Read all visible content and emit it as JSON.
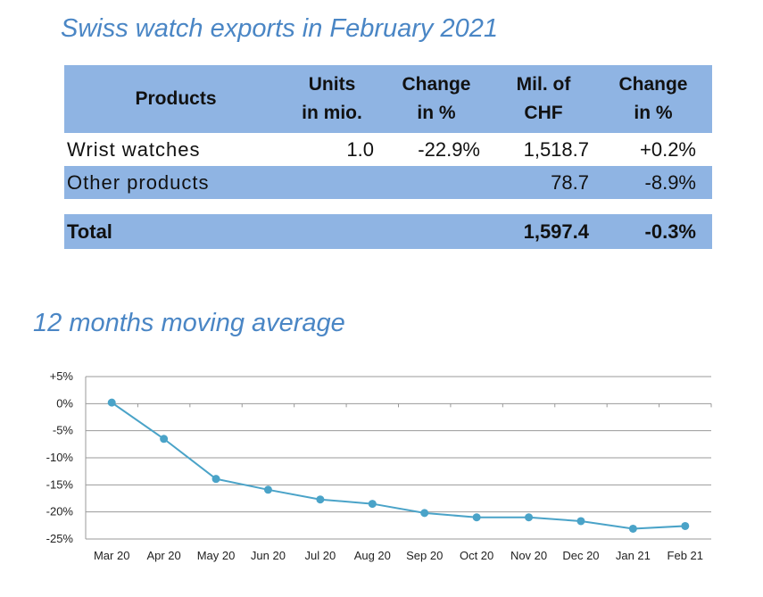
{
  "page": {
    "title": "Swiss watch exports in February 2021",
    "chart_title": "12 months moving average"
  },
  "table": {
    "headers": {
      "products": "Products",
      "units": "Units\nin mio.",
      "change_units": "Change\nin %",
      "mil_chf": "Mil. of\nCHF",
      "change_chf": "Change\nin %"
    },
    "rows": [
      {
        "product": "Wrist watches",
        "units": "1.0",
        "change_units": "-22.9%",
        "mil_chf": "1,518.7",
        "change_chf": "+0.2%"
      },
      {
        "product": "Other products",
        "units": "",
        "change_units": "",
        "mil_chf": "78.7",
        "change_chf": "-8.9%"
      }
    ],
    "total": {
      "label": "Total",
      "mil_chf": "1,597.4",
      "change_chf": "-0.3%"
    }
  },
  "chart_data": {
    "type": "line",
    "title": "12 months moving average",
    "xlabel": "",
    "ylabel": "",
    "categories": [
      "Mar 20",
      "Apr 20",
      "May 20",
      "Jun 20",
      "Jul 20",
      "Aug 20",
      "Sep 20",
      "Oct 20",
      "Nov 20",
      "Dec 20",
      "Jan 21",
      "Feb 21"
    ],
    "series": [
      {
        "values": [
          0.2,
          -6.5,
          -13.9,
          -15.9,
          -17.7,
          -18.5,
          -20.2,
          -21.0,
          -21.0,
          -21.7,
          -23.1,
          -22.6
        ]
      }
    ],
    "ylim": [
      -25,
      5
    ],
    "y_ticks": [
      5,
      0,
      -5,
      -10,
      -15,
      -20,
      -25
    ],
    "y_tick_labels": [
      "+5%",
      "0%",
      "-5%",
      "-10%",
      "-15%",
      "-20%",
      "-25%"
    ],
    "grid": true,
    "legend": "none",
    "line_color": "#4aa3c8"
  }
}
